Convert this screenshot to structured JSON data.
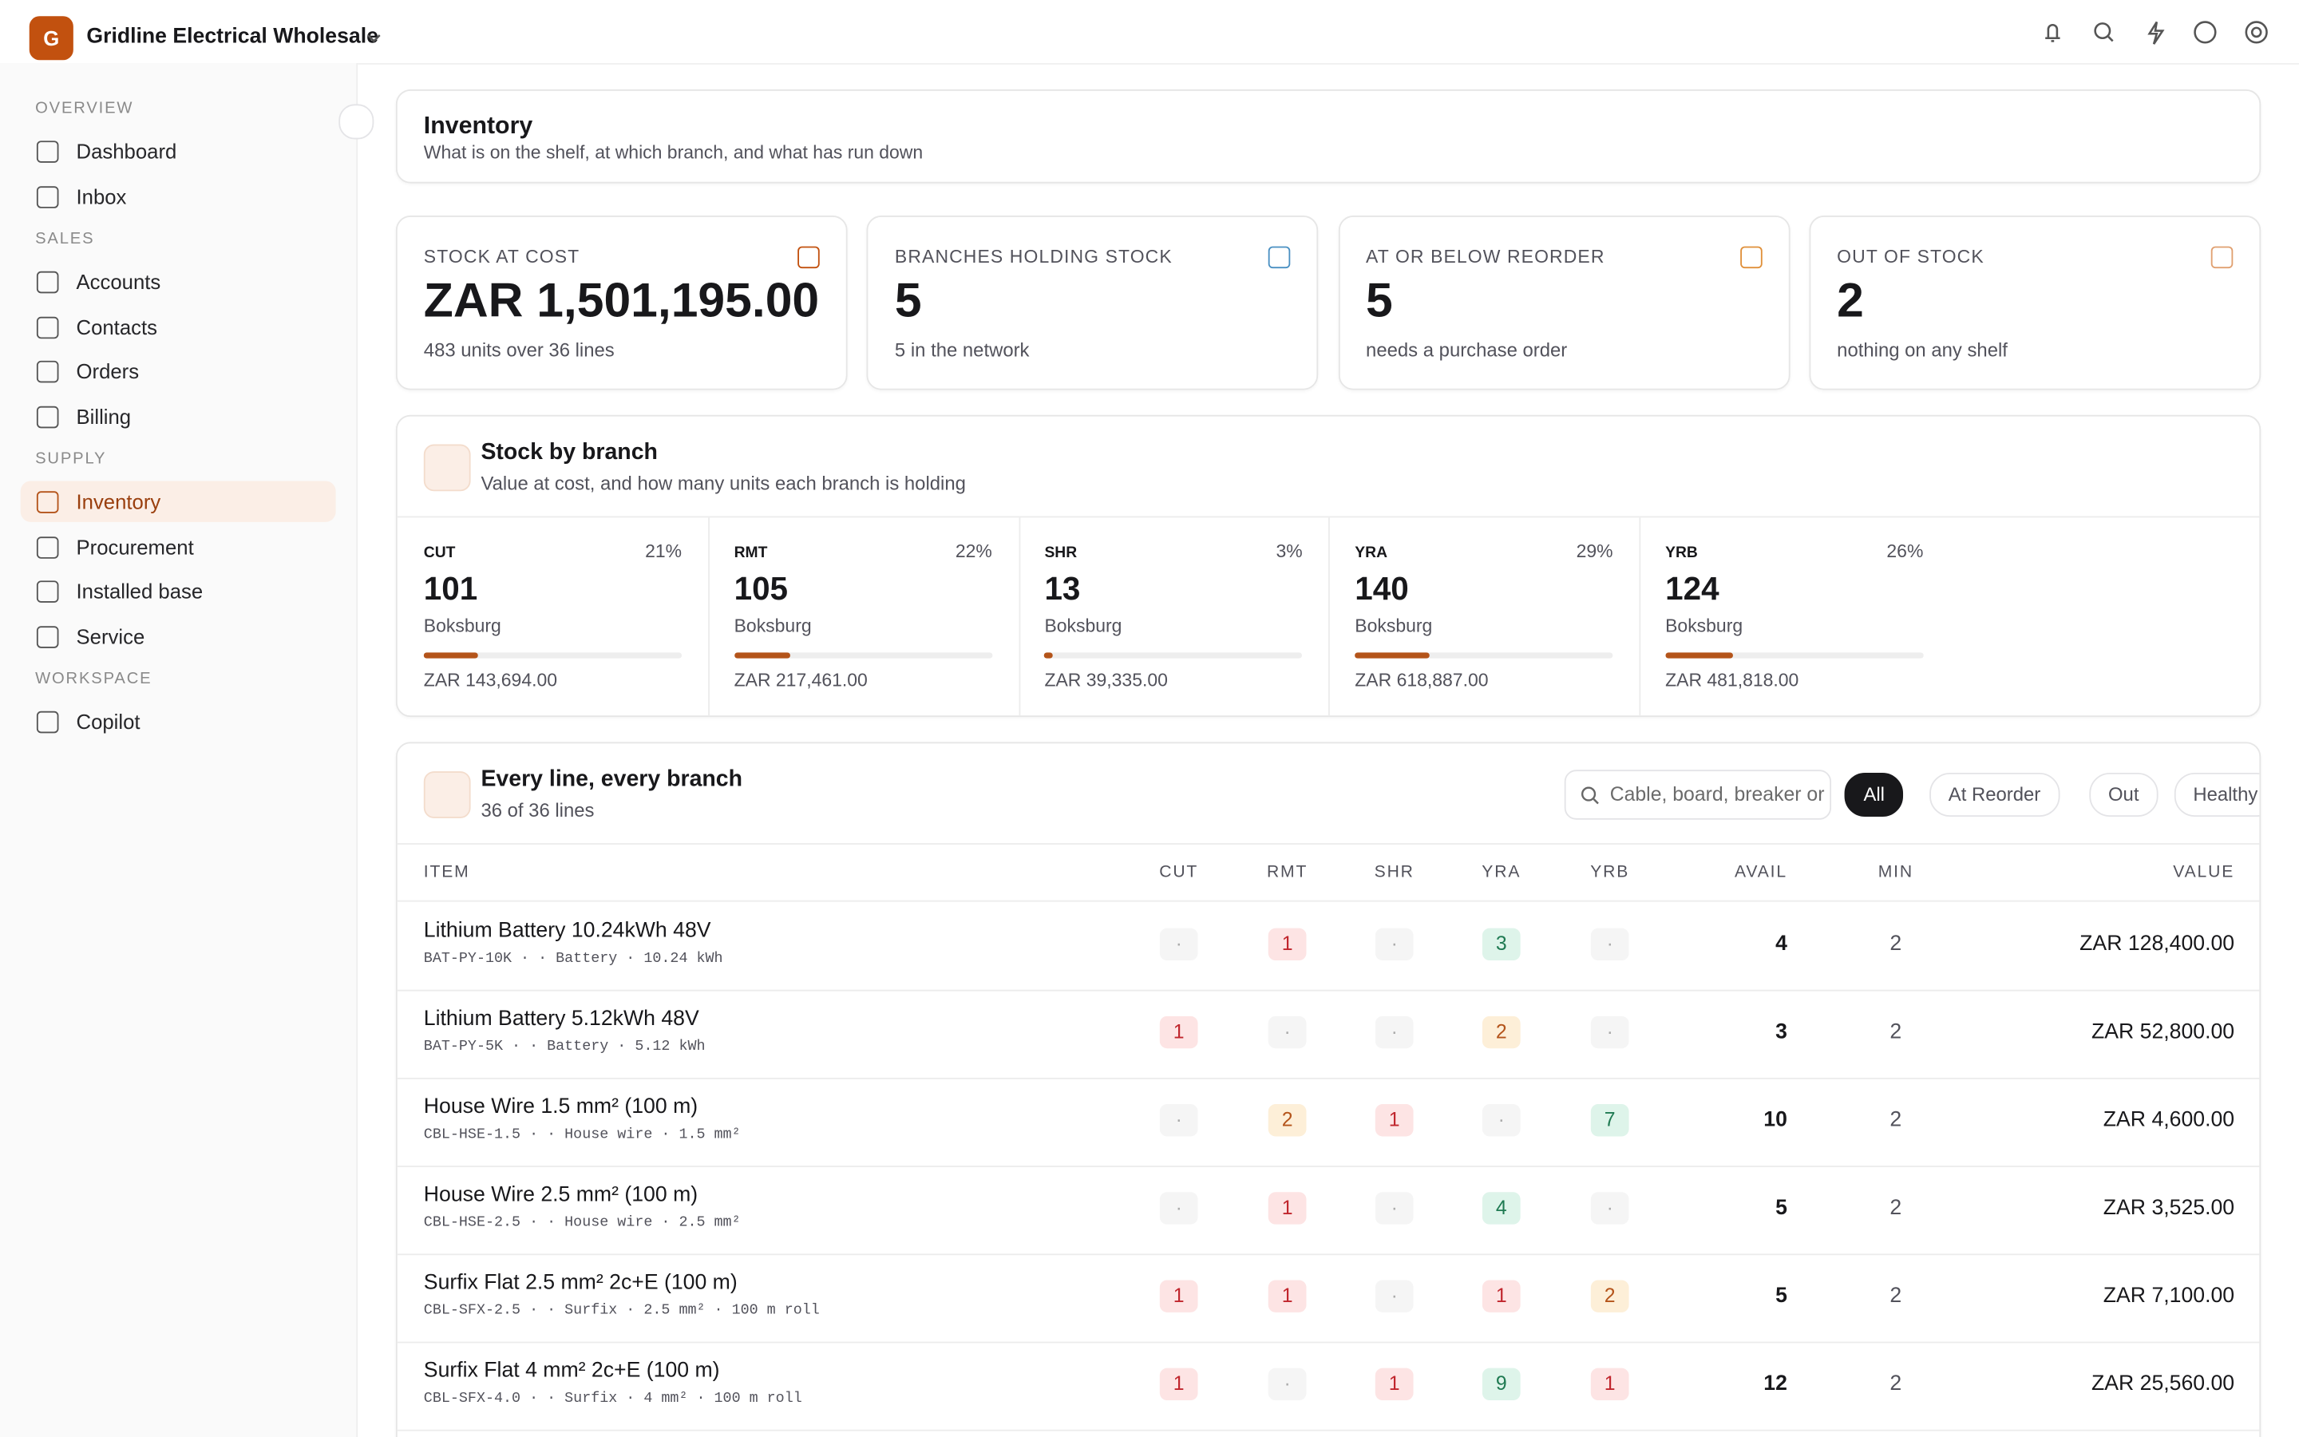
{
  "workspace": {
    "initial": "G",
    "name": "Gridline Electrical Wholesale"
  },
  "nav": [
    {
      "label": "OVERVIEW",
      "items": [
        "Dashboard",
        "Inbox"
      ]
    },
    {
      "label": "SALES",
      "items": [
        "Accounts",
        "Contacts",
        "Orders",
        "Billing"
      ]
    },
    {
      "label": "SUPPLY",
      "items": [
        "Inventory",
        "Procurement",
        "Installed base",
        "Service"
      ]
    },
    {
      "label": "WORKSPACE",
      "items": [
        "Copilot"
      ]
    }
  ],
  "active": "Inventory",
  "header": {
    "title": "Inventory",
    "subtitle": "What is on the shelf, at which branch, and what has run down"
  },
  "kpis": [
    {
      "label": "STOCK AT COST",
      "value": "ZAR 1,501,195.00",
      "note": "483 units over 36 lines"
    },
    {
      "label": "BRANCHES HOLDING STOCK",
      "value": "5",
      "note": "5 in the network"
    },
    {
      "label": "AT OR BELOW REORDER",
      "value": "5",
      "note": "needs a purchase order"
    },
    {
      "label": "OUT OF STOCK",
      "value": "2",
      "note": "nothing on any shelf"
    }
  ],
  "branches": {
    "title": "Stock by branch",
    "subtitle": "Value at cost, and how many units each branch is holding",
    "items": [
      {
        "code": "CUT",
        "share": 21,
        "share_label": "21%",
        "units": "101",
        "city": "Boksburg",
        "value": "ZAR 143,694.00"
      },
      {
        "code": "RMT",
        "share": 22,
        "share_label": "22%",
        "units": "105",
        "city": "Boksburg",
        "value": "ZAR 217,461.00"
      },
      {
        "code": "SHR",
        "share": 3,
        "share_label": "3%",
        "units": "13",
        "city": "Boksburg",
        "value": "ZAR 39,335.00"
      },
      {
        "code": "YRA",
        "share": 29,
        "share_label": "29%",
        "units": "140",
        "city": "Boksburg",
        "value": "ZAR 618,887.00"
      },
      {
        "code": "YRB",
        "share": 26,
        "share_label": "26%",
        "units": "124",
        "city": "Boksburg",
        "value": "ZAR 481,818.00"
      }
    ]
  },
  "table": {
    "title": "Every line, every branch",
    "subtitle": "36 of 36 lines",
    "search": "Cable, board, breaker or SKU",
    "filters": [
      "All",
      "At Reorder",
      "Out",
      "Healthy"
    ],
    "active_filter": "All",
    "columns": [
      "ITEM",
      "CUT",
      "RMT",
      "SHR",
      "YRA",
      "YRB",
      "AVAIL",
      "MIN",
      "VALUE"
    ],
    "rows": [
      {
        "name": "Lithium Battery 10.24kWh 48V",
        "meta": "BAT-PY-10K · · Battery · 10.24 kWh",
        "cells": [
          "·",
          1,
          "·",
          3,
          "·"
        ],
        "avail": "4",
        "min": "2",
        "value": "ZAR 128,400.00"
      },
      {
        "name": "Lithium Battery 5.12kWh 48V",
        "meta": "BAT-PY-5K · · Battery · 5.12 kWh",
        "cells": [
          1,
          "·",
          "·",
          2,
          "·"
        ],
        "avail": "3",
        "min": "2",
        "value": "ZAR 52,800.00"
      },
      {
        "name": "House Wire 1.5 mm² (100 m)",
        "meta": "CBL-HSE-1.5 · · House wire · 1.5 mm²",
        "cells": [
          "·",
          2,
          1,
          "·",
          7
        ],
        "avail": "10",
        "min": "2",
        "value": "ZAR 4,600.00"
      },
      {
        "name": "House Wire 2.5 mm² (100 m)",
        "meta": "CBL-HSE-2.5 · · House wire · 2.5 mm²",
        "cells": [
          "·",
          1,
          "·",
          4,
          "·"
        ],
        "avail": "5",
        "min": "2",
        "value": "ZAR 3,525.00"
      },
      {
        "name": "Surfix Flat 2.5 mm² 2c+E (100 m)",
        "meta": "CBL-SFX-2.5 · · Surfix · 2.5 mm² · 100 m roll",
        "cells": [
          1,
          1,
          "·",
          1,
          2
        ],
        "avail": "5",
        "min": "2",
        "value": "ZAR 7,100.00"
      },
      {
        "name": "Surfix Flat 4 mm² 2c+E (100 m)",
        "meta": "CBL-SFX-4.0 · · Surfix · 4 mm² · 100 m roll",
        "cells": [
          1,
          "·",
          1,
          9,
          1
        ],
        "avail": "12",
        "min": "2",
        "value": "ZAR 25,560.00"
      }
    ]
  }
}
